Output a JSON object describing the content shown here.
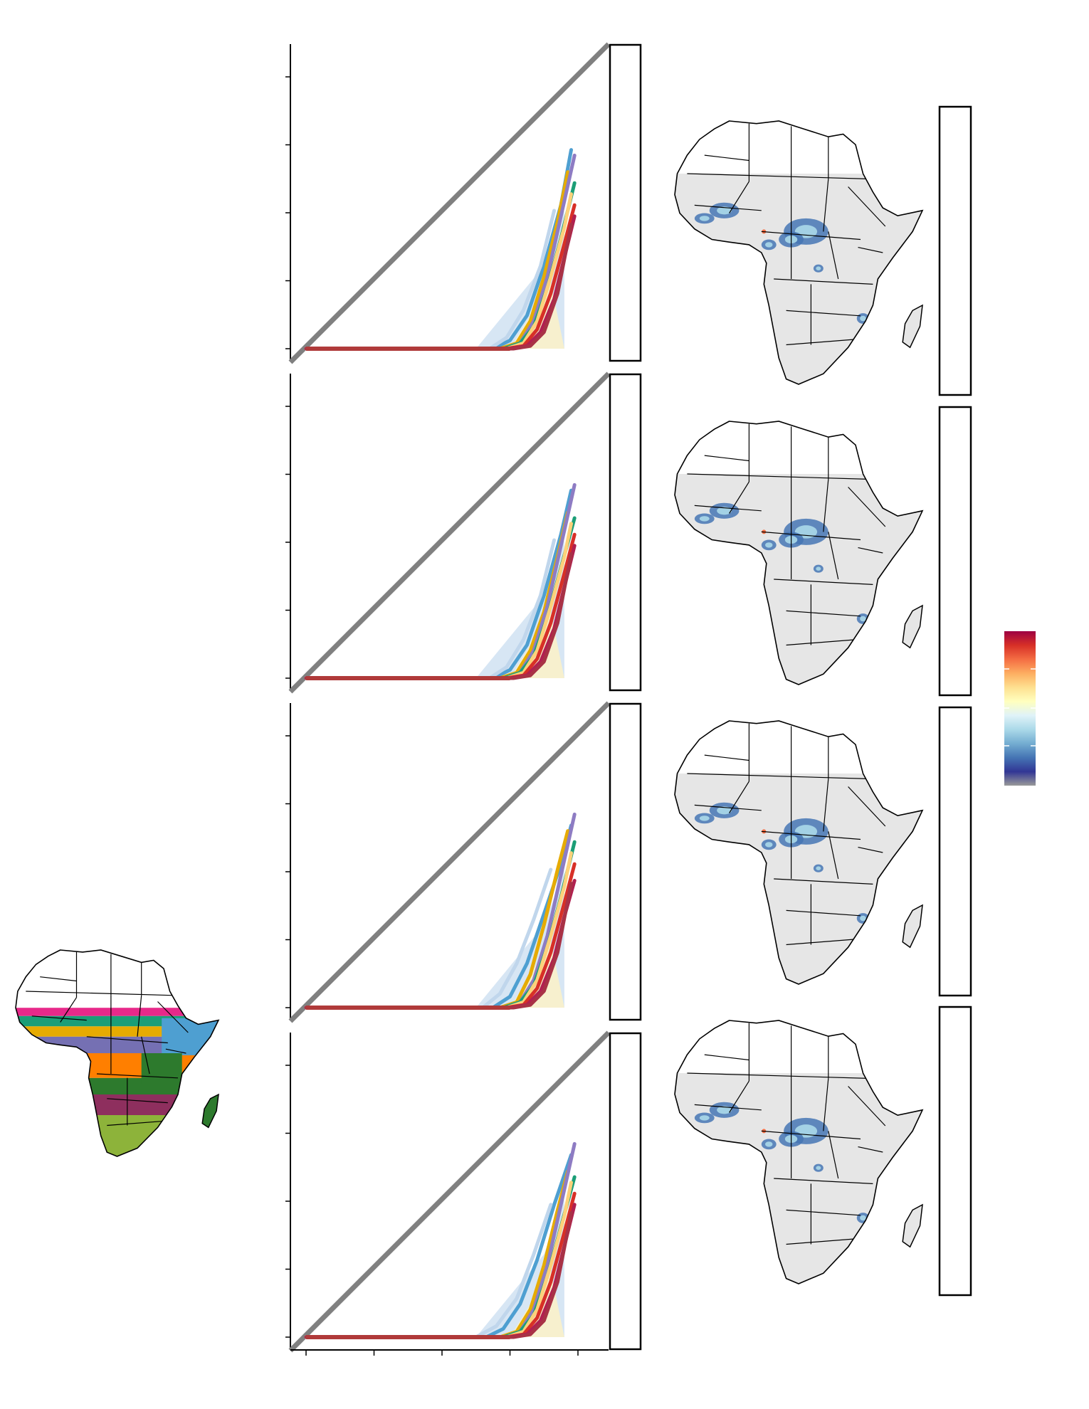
{
  "colors": {
    "reference_line": "#808080",
    "country_border": "#000000",
    "land_fill": "#e6e6e6",
    "map_outline": "#000000",
    "colorbar": [
      "#9e0142",
      "#d73027",
      "#f46d43",
      "#fdae61",
      "#fee090",
      "#ffffbf",
      "#e0f3f8",
      "#abd9e9",
      "#74add1",
      "#4575b4",
      "#313695",
      "#999999"
    ]
  },
  "region_colors": [
    "#e7298a",
    "#1b9e77",
    "#e6ab02",
    "#7570b3",
    "#ff7f00",
    "#2d7a2d",
    "#8e2f5e",
    "#8db33a",
    "#4e9fd1"
  ],
  "series_colors": [
    "#4e9fd1",
    "#e6ab02",
    "#8e7cc3",
    "#1b9e77",
    "#fdd17a",
    "#d73027",
    "#b02050",
    "#c0d6ec",
    "#a83246"
  ],
  "chart_data": [
    {
      "type": "line",
      "panel": 1,
      "reference_line": true,
      "series": [
        {
          "values": [
            [
              0,
              0
            ],
            [
              55,
              0
            ],
            [
              60,
              0.03
            ],
            [
              65,
              0.12
            ],
            [
              70,
              0.3
            ],
            [
              75,
              0.52
            ],
            [
              78,
              0.72
            ]
          ]
        },
        {
          "values": [
            [
              0,
              0
            ],
            [
              57,
              0
            ],
            [
              62,
              0.02
            ],
            [
              66,
              0.1
            ],
            [
              70,
              0.26
            ],
            [
              74,
              0.46
            ],
            [
              77,
              0.64
            ]
          ]
        },
        {
          "values": [
            [
              0,
              0
            ],
            [
              58,
              0
            ],
            [
              63,
              0.02
            ],
            [
              67,
              0.1
            ],
            [
              71,
              0.26
            ],
            [
              75,
              0.48
            ],
            [
              79,
              0.7
            ]
          ]
        },
        {
          "values": [
            [
              0,
              0
            ],
            [
              58,
              0
            ],
            [
              63,
              0.02
            ],
            [
              67,
              0.08
            ],
            [
              71,
              0.22
            ],
            [
              75,
              0.4
            ],
            [
              79,
              0.6
            ]
          ]
        },
        {
          "values": [
            [
              0,
              0
            ],
            [
              59,
              0
            ],
            [
              64,
              0.02
            ],
            [
              68,
              0.1
            ],
            [
              72,
              0.26
            ],
            [
              76,
              0.44
            ],
            [
              78,
              0.56
            ]
          ]
        },
        {
          "values": [
            [
              0,
              0
            ],
            [
              59,
              0
            ],
            [
              64,
              0.01
            ],
            [
              68,
              0.07
            ],
            [
              72,
              0.2
            ],
            [
              76,
              0.38
            ],
            [
              79,
              0.52
            ]
          ]
        },
        {
          "values": [
            [
              0,
              0
            ],
            [
              60,
              0
            ],
            [
              65,
              0.01
            ],
            [
              69,
              0.06
            ],
            [
              73,
              0.18
            ],
            [
              76,
              0.33
            ],
            [
              79,
              0.48
            ]
          ]
        },
        {
          "values": [
            [
              0,
              0
            ],
            [
              54,
              0
            ],
            [
              59,
              0.04
            ],
            [
              64,
              0.14
            ],
            [
              69,
              0.3
            ],
            [
              73,
              0.5
            ]
          ]
        },
        {
          "values": [
            [
              0,
              0
            ],
            [
              61,
              0
            ],
            [
              66,
              0.01
            ],
            [
              70,
              0.06
            ],
            [
              74,
              0.2
            ],
            [
              78,
              0.45
            ]
          ]
        }
      ]
    },
    {
      "type": "line",
      "panel": 2,
      "reference_line": true,
      "series": [
        {
          "values": [
            [
              0,
              0
            ],
            [
              55,
              0
            ],
            [
              60,
              0.03
            ],
            [
              65,
              0.12
            ],
            [
              70,
              0.3
            ],
            [
              75,
              0.52
            ],
            [
              78,
              0.68
            ]
          ]
        },
        {
          "values": [
            [
              0,
              0
            ],
            [
              57,
              0
            ],
            [
              62,
              0.02
            ],
            [
              66,
              0.1
            ],
            [
              70,
              0.24
            ],
            [
              74,
              0.44
            ],
            [
              77,
              0.6
            ]
          ]
        },
        {
          "values": [
            [
              0,
              0
            ],
            [
              58,
              0
            ],
            [
              63,
              0.02
            ],
            [
              67,
              0.1
            ],
            [
              71,
              0.26
            ],
            [
              75,
              0.48
            ],
            [
              79,
              0.7
            ]
          ]
        },
        {
          "values": [
            [
              0,
              0
            ],
            [
              58,
              0
            ],
            [
              63,
              0.02
            ],
            [
              67,
              0.08
            ],
            [
              71,
              0.22
            ],
            [
              75,
              0.4
            ],
            [
              79,
              0.58
            ]
          ]
        },
        {
          "values": [
            [
              0,
              0
            ],
            [
              59,
              0
            ],
            [
              64,
              0.02
            ],
            [
              68,
              0.1
            ],
            [
              72,
              0.26
            ],
            [
              76,
              0.44
            ],
            [
              78,
              0.56
            ]
          ]
        },
        {
          "values": [
            [
              0,
              0
            ],
            [
              59,
              0
            ],
            [
              64,
              0.01
            ],
            [
              68,
              0.07
            ],
            [
              72,
              0.2
            ],
            [
              76,
              0.38
            ],
            [
              79,
              0.52
            ]
          ]
        },
        {
          "values": [
            [
              0,
              0
            ],
            [
              60,
              0
            ],
            [
              65,
              0.01
            ],
            [
              69,
              0.06
            ],
            [
              73,
              0.18
            ],
            [
              76,
              0.33
            ],
            [
              79,
              0.48
            ]
          ]
        },
        {
          "values": [
            [
              0,
              0
            ],
            [
              54,
              0
            ],
            [
              59,
              0.04
            ],
            [
              64,
              0.14
            ],
            [
              69,
              0.3
            ],
            [
              73,
              0.5
            ]
          ]
        },
        {
          "values": [
            [
              0,
              0
            ],
            [
              61,
              0
            ],
            [
              66,
              0.01
            ],
            [
              70,
              0.06
            ],
            [
              74,
              0.2
            ],
            [
              78,
              0.45
            ]
          ]
        }
      ]
    },
    {
      "type": "line",
      "panel": 3,
      "reference_line": true,
      "series": [
        {
          "values": [
            [
              0,
              0
            ],
            [
              55,
              0
            ],
            [
              60,
              0.04
            ],
            [
              65,
              0.16
            ],
            [
              70,
              0.34
            ],
            [
              75,
              0.52
            ],
            [
              78,
              0.66
            ]
          ]
        },
        {
          "values": [
            [
              0,
              0
            ],
            [
              57,
              0
            ],
            [
              62,
              0.02
            ],
            [
              66,
              0.12
            ],
            [
              70,
              0.3
            ],
            [
              74,
              0.5
            ],
            [
              77,
              0.64
            ]
          ]
        },
        {
          "values": [
            [
              0,
              0
            ],
            [
              58,
              0
            ],
            [
              63,
              0.02
            ],
            [
              67,
              0.1
            ],
            [
              71,
              0.26
            ],
            [
              75,
              0.48
            ],
            [
              79,
              0.7
            ]
          ]
        },
        {
          "values": [
            [
              0,
              0
            ],
            [
              58,
              0
            ],
            [
              63,
              0.02
            ],
            [
              67,
              0.08
            ],
            [
              71,
              0.22
            ],
            [
              75,
              0.4
            ],
            [
              79,
              0.6
            ]
          ]
        },
        {
          "values": [
            [
              0,
              0
            ],
            [
              59,
              0
            ],
            [
              64,
              0.02
            ],
            [
              68,
              0.1
            ],
            [
              72,
              0.26
            ],
            [
              76,
              0.44
            ],
            [
              78,
              0.56
            ]
          ]
        },
        {
          "values": [
            [
              0,
              0
            ],
            [
              59,
              0
            ],
            [
              64,
              0.01
            ],
            [
              68,
              0.07
            ],
            [
              72,
              0.2
            ],
            [
              76,
              0.38
            ],
            [
              79,
              0.52
            ]
          ]
        },
        {
          "values": [
            [
              0,
              0
            ],
            [
              60,
              0
            ],
            [
              65,
              0.01
            ],
            [
              69,
              0.06
            ],
            [
              73,
              0.18
            ],
            [
              76,
              0.33
            ],
            [
              79,
              0.46
            ]
          ]
        },
        {
          "values": [
            [
              0,
              0
            ],
            [
              52,
              0
            ],
            [
              57,
              0.05
            ],
            [
              62,
              0.16
            ],
            [
              67,
              0.32
            ],
            [
              72,
              0.5
            ]
          ]
        },
        {
          "values": [
            [
              0,
              0
            ],
            [
              61,
              0
            ],
            [
              66,
              0.01
            ],
            [
              70,
              0.06
            ],
            [
              74,
              0.2
            ],
            [
              78,
              0.45
            ]
          ]
        }
      ]
    },
    {
      "type": "line",
      "panel": 4,
      "reference_line": true,
      "series": [
        {
          "values": [
            [
              0,
              0
            ],
            [
              53,
              0
            ],
            [
              58,
              0.03
            ],
            [
              63,
              0.12
            ],
            [
              68,
              0.28
            ],
            [
              73,
              0.48
            ],
            [
              78,
              0.66
            ]
          ]
        },
        {
          "values": [
            [
              0,
              0
            ],
            [
              57,
              0
            ],
            [
              62,
              0.02
            ],
            [
              66,
              0.1
            ],
            [
              70,
              0.26
            ],
            [
              74,
              0.46
            ],
            [
              77,
              0.6
            ]
          ]
        },
        {
          "values": [
            [
              0,
              0
            ],
            [
              58,
              0
            ],
            [
              63,
              0.02
            ],
            [
              67,
              0.1
            ],
            [
              71,
              0.26
            ],
            [
              75,
              0.48
            ],
            [
              79,
              0.7
            ]
          ]
        },
        {
          "values": [
            [
              0,
              0
            ],
            [
              58,
              0
            ],
            [
              63,
              0.02
            ],
            [
              67,
              0.08
            ],
            [
              71,
              0.22
            ],
            [
              75,
              0.4
            ],
            [
              79,
              0.58
            ]
          ]
        },
        {
          "values": [
            [
              0,
              0
            ],
            [
              59,
              0
            ],
            [
              64,
              0.02
            ],
            [
              68,
              0.1
            ],
            [
              72,
              0.26
            ],
            [
              76,
              0.44
            ],
            [
              78,
              0.56
            ]
          ]
        },
        {
          "values": [
            [
              0,
              0
            ],
            [
              59,
              0
            ],
            [
              64,
              0.01
            ],
            [
              68,
              0.07
            ],
            [
              72,
              0.2
            ],
            [
              76,
              0.38
            ],
            [
              79,
              0.52
            ]
          ]
        },
        {
          "values": [
            [
              0,
              0
            ],
            [
              60,
              0
            ],
            [
              65,
              0.01
            ],
            [
              69,
              0.06
            ],
            [
              73,
              0.18
            ],
            [
              76,
              0.33
            ],
            [
              79,
              0.48
            ]
          ]
        },
        {
          "values": [
            [
              0,
              0
            ],
            [
              50,
              0
            ],
            [
              56,
              0.04
            ],
            [
              62,
              0.14
            ],
            [
              67,
              0.3
            ],
            [
              72,
              0.48
            ]
          ]
        },
        {
          "values": [
            [
              0,
              0
            ],
            [
              61,
              0
            ],
            [
              66,
              0.01
            ],
            [
              70,
              0.06
            ],
            [
              74,
              0.2
            ],
            [
              78,
              0.45
            ]
          ]
        }
      ]
    }
  ]
}
